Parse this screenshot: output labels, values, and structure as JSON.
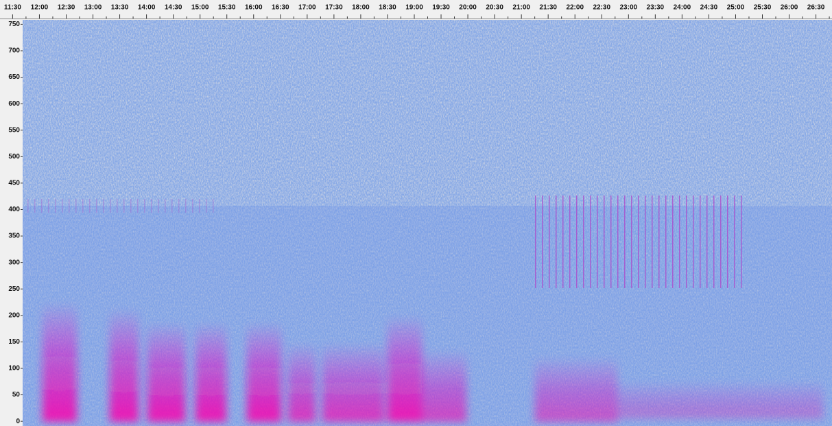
{
  "chart_data": {
    "type": "spectrogram",
    "xlim": [
      682,
      1608
    ],
    "xticks": [
      {
        "value": 690,
        "label": "11:30"
      },
      {
        "value": 720,
        "label": "12:00"
      },
      {
        "value": 750,
        "label": "12:30"
      },
      {
        "value": 780,
        "label": "13:00"
      },
      {
        "value": 810,
        "label": "13:30"
      },
      {
        "value": 840,
        "label": "14:00"
      },
      {
        "value": 870,
        "label": "14:30"
      },
      {
        "value": 900,
        "label": "15:00"
      },
      {
        "value": 930,
        "label": "15:30"
      },
      {
        "value": 960,
        "label": "16:00"
      },
      {
        "value": 990,
        "label": "16:30"
      },
      {
        "value": 1020,
        "label": "17:00"
      },
      {
        "value": 1050,
        "label": "17:30"
      },
      {
        "value": 1080,
        "label": "18:00"
      },
      {
        "value": 1110,
        "label": "18:30"
      },
      {
        "value": 1140,
        "label": "19:00"
      },
      {
        "value": 1170,
        "label": "19:30"
      },
      {
        "value": 1200,
        "label": "20:00"
      },
      {
        "value": 1230,
        "label": "20:30"
      },
      {
        "value": 1260,
        "label": "21:00"
      },
      {
        "value": 1290,
        "label": "21:30"
      },
      {
        "value": 1320,
        "label": "22:00"
      },
      {
        "value": 1350,
        "label": "22:30"
      },
      {
        "value": 1380,
        "label": "23:00"
      },
      {
        "value": 1410,
        "label": "23:30"
      },
      {
        "value": 1440,
        "label": "24:00"
      },
      {
        "value": 1470,
        "label": "24:30"
      },
      {
        "value": 1500,
        "label": "25:00"
      },
      {
        "value": 1530,
        "label": "25:30"
      },
      {
        "value": 1560,
        "label": "26:00"
      },
      {
        "value": 1590,
        "label": "26:30"
      }
    ],
    "ylim": [
      -5,
      757
    ],
    "yticks": [
      0,
      50,
      100,
      150,
      200,
      250,
      300,
      350,
      400,
      450,
      500,
      550,
      600,
      650,
      700,
      750
    ]
  }
}
